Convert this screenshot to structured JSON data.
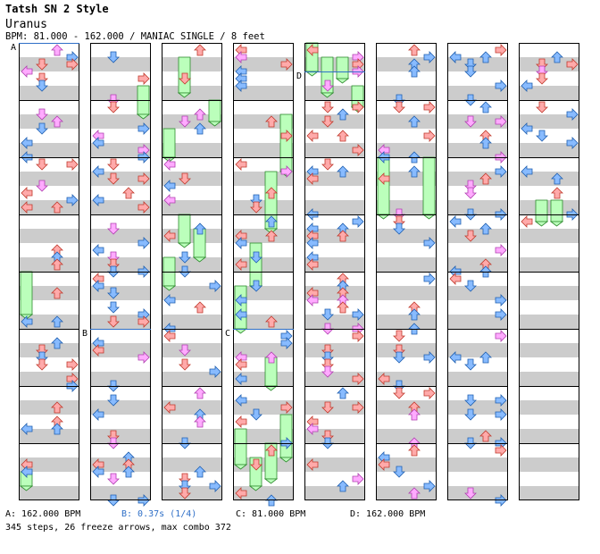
{
  "header": {
    "style": "Tatsh SN 2 Style",
    "song_title": "Uranus",
    "meta_line": "BPM: 81.000 - 162.000 / MANIAC SINGLE / 8 feet"
  },
  "markers": {
    "A": "A",
    "B": "B",
    "C": "C",
    "D": "D"
  },
  "legend": {
    "bpm_a": "A: 162.000 BPM",
    "stop_b": "B: 0.37s (1/4)",
    "bpm_c": "C: 81.000 BPM",
    "bpm_d": "D: 162.000 BPM"
  },
  "summary": "345 steps, 26 freeze arrows, max combo 372",
  "chart_data": {
    "type": "step-chart",
    "difficulty": "MANIAC",
    "mode": "SINGLE",
    "feet": 8,
    "bpm_range": [
      81.0,
      162.0
    ],
    "total_steps": 345,
    "freeze_arrows": 26,
    "max_combo": 372,
    "columns": 8,
    "measures_per_column": 8,
    "colors": {
      "quarter": "#ffaaaa",
      "eighth": "#88bbff",
      "sixteenth": "#ffaaff",
      "freeze": "#bbffbb",
      "stripe": "#cccccc",
      "marker_line": "#2f6fc7"
    },
    "events": [
      {
        "label": "A",
        "type": "bpm",
        "value": 162.0,
        "col": 0,
        "beat": 0
      },
      {
        "label": "B",
        "type": "stop",
        "seconds": 0.37,
        "fraction": "1/4",
        "col": 1,
        "beat": 20
      },
      {
        "label": "C",
        "type": "bpm",
        "value": 81.0,
        "col": 3,
        "beat": 20
      },
      {
        "label": "D",
        "type": "bpm",
        "value": 162.0,
        "col": 4,
        "beat": 2
      }
    ],
    "freezes": [
      {
        "col": 0,
        "start": 16.0,
        "end": 19.0,
        "lane": 0
      },
      {
        "col": 1,
        "start": 3.0,
        "end": 5.0,
        "lane": 3
      },
      {
        "col": 2,
        "start": 1.0,
        "end": 3.5,
        "lane": 1
      },
      {
        "col": 2,
        "start": 4.0,
        "end": 5.5,
        "lane": 3
      },
      {
        "col": 2,
        "start": 6.0,
        "end": 8.0,
        "lane": 0
      },
      {
        "col": 2,
        "start": 12.0,
        "end": 14.0,
        "lane": 1
      },
      {
        "col": 2,
        "start": 13.0,
        "end": 15.0,
        "lane": 2
      },
      {
        "col": 2,
        "start": 15.0,
        "end": 17.0,
        "lane": 0
      },
      {
        "col": 3,
        "start": 5.0,
        "end": 9.0,
        "lane": 3
      },
      {
        "col": 3,
        "start": 9.0,
        "end": 13.0,
        "lane": 2
      },
      {
        "col": 3,
        "start": 14.0,
        "end": 17.0,
        "lane": 1
      },
      {
        "col": 3,
        "start": 17.0,
        "end": 20.0,
        "lane": 0
      },
      {
        "col": 3,
        "start": 22.0,
        "end": 24.0,
        "lane": 2
      },
      {
        "col": 3,
        "start": 26.0,
        "end": 29.0,
        "lane": 3
      },
      {
        "col": 3,
        "start": 27.0,
        "end": 29.5,
        "lane": 0
      },
      {
        "col": 3,
        "start": 28.0,
        "end": 30.5,
        "lane": 2
      },
      {
        "col": 3,
        "start": 29.0,
        "end": 31.0,
        "lane": 1
      },
      {
        "col": 4,
        "start": 0.0,
        "end": 2.0,
        "lane": 0
      },
      {
        "col": 4,
        "start": 1.0,
        "end": 3.5,
        "lane": 1
      },
      {
        "col": 4,
        "start": 1.0,
        "end": 2.5,
        "lane": 2
      },
      {
        "col": 4,
        "start": 3.0,
        "end": 4.5,
        "lane": 3
      },
      {
        "col": 5,
        "start": 8.0,
        "end": 12.0,
        "lane": 0
      },
      {
        "col": 5,
        "start": 8.0,
        "end": 12.0,
        "lane": 3
      },
      {
        "col": 7,
        "start": 11.0,
        "end": 12.5,
        "lane": 1
      },
      {
        "col": 7,
        "start": 11.0,
        "end": 12.5,
        "lane": 2
      },
      {
        "col": 0,
        "start": 30.0,
        "end": 31.0,
        "lane": 0
      }
    ]
  }
}
